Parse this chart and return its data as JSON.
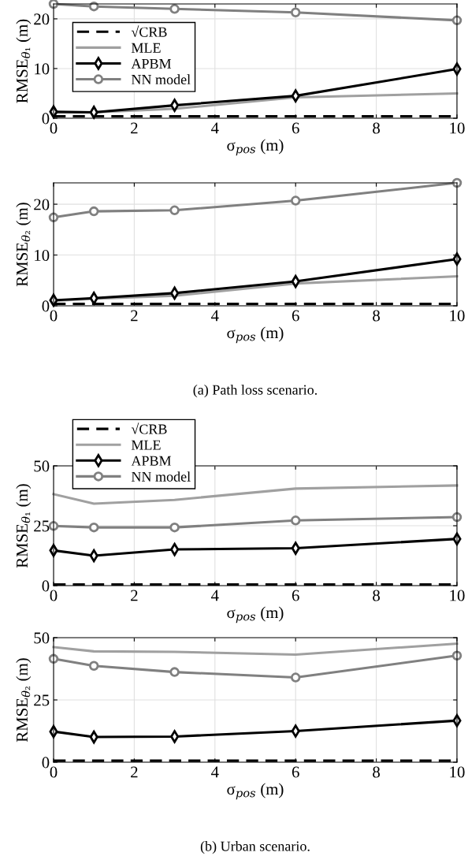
{
  "chart_data": [
    {
      "type": "line",
      "x": [
        0,
        1,
        3,
        6,
        10
      ],
      "ylabel": "RMSE$_{θ₁}$ (m)",
      "xlabel": "σ$_{pos}$ (m)",
      "xlim": [
        0,
        10
      ],
      "xticks": [
        0,
        2,
        4,
        6,
        8,
        10
      ],
      "ylim": [
        0,
        23
      ],
      "yticks": [
        0,
        10,
        20
      ],
      "grid": true,
      "legend": "top left",
      "series": [
        {
          "name": "√CRB",
          "color": "#000000",
          "line_style": "dashed",
          "marker": "none",
          "values": [
            0.4,
            0.4,
            0.4,
            0.4,
            0.4
          ]
        },
        {
          "name": "MLE",
          "color": "#a0a0a0",
          "line_style": "solid",
          "marker": "none",
          "values": [
            1.1,
            1.2,
            1.9,
            4.2,
            5.0
          ]
        },
        {
          "name": "APBM",
          "color": "#000000",
          "line_style": "solid",
          "marker": "diamond",
          "values": [
            1.3,
            1.2,
            2.6,
            4.5,
            9.9
          ]
        },
        {
          "name": "NN model",
          "color": "#808080",
          "line_style": "solid",
          "marker": "circle",
          "values": [
            23,
            22.5,
            22,
            21.3,
            19.7
          ]
        }
      ]
    },
    {
      "type": "line",
      "x": [
        0,
        1,
        3,
        6,
        10
      ],
      "ylabel": "RMSE$_{θ₂}$ (m)",
      "xlabel": "σ$_{pos}$ (m)",
      "xlim": [
        0,
        10
      ],
      "xticks": [
        0,
        2,
        4,
        6,
        8,
        10
      ],
      "ylim": [
        0,
        24.2
      ],
      "yticks": [
        0,
        10,
        20
      ],
      "grid": true,
      "annotations": [
        "(a) Path loss scenario."
      ],
      "series": [
        {
          "color": "#000000",
          "line_style": "dashed",
          "marker": "none",
          "values": [
            0.4,
            0.4,
            0.4,
            0.4,
            0.4
          ]
        },
        {
          "color": "#a0a0a0",
          "line_style": "solid",
          "marker": "none",
          "values": [
            1.0,
            1.4,
            2.0,
            4.4,
            5.8
          ]
        },
        {
          "color": "#000000",
          "line_style": "solid",
          "marker": "diamond",
          "values": [
            1.1,
            1.5,
            2.5,
            4.8,
            9.2
          ]
        },
        {
          "color": "#808080",
          "line_style": "solid",
          "marker": "circle",
          "values": [
            17.4,
            18.6,
            18.8,
            20.7,
            24.2
          ]
        }
      ]
    },
    {
      "type": "line",
      "x": [
        0,
        1,
        3,
        6,
        10
      ],
      "ylabel": "RMSE$_{θ₁}$ (m)",
      "xlabel": "σ$_{pos}$ (m)",
      "xlim": [
        0,
        10
      ],
      "xticks": [
        0,
        2,
        4,
        6,
        8,
        10
      ],
      "ylim": [
        0,
        50
      ],
      "yticks": [
        0,
        25,
        50
      ],
      "grid": true,
      "legend": "top",
      "series": [
        {
          "name": "√CRB",
          "color": "#000000",
          "line_style": "dashed",
          "marker": "none",
          "values": [
            0.5,
            0.5,
            0.5,
            0.5,
            0.5
          ]
        },
        {
          "name": "MLE",
          "color": "#a0a0a0",
          "line_style": "solid",
          "marker": "none",
          "values": [
            38.2,
            34.2,
            35.8,
            40.5,
            41.8
          ]
        },
        {
          "name": "APBM",
          "color": "#000000",
          "line_style": "solid",
          "marker": "diamond",
          "values": [
            14.7,
            12.5,
            15.1,
            15.6,
            19.5
          ]
        },
        {
          "name": "NN model",
          "color": "#808080",
          "line_style": "solid",
          "marker": "circle",
          "values": [
            24.9,
            24.3,
            24.3,
            27.2,
            28.6
          ]
        }
      ]
    },
    {
      "type": "line",
      "x": [
        0,
        1,
        3,
        6,
        10
      ],
      "ylabel": "RMSE$_{θ₂}$ (m)",
      "xlabel": "σ$_{pos}$ (m)",
      "xlim": [
        0,
        10
      ],
      "xticks": [
        0,
        2,
        4,
        6,
        8,
        10
      ],
      "ylim": [
        0,
        50
      ],
      "yticks": [
        0,
        25,
        50
      ],
      "grid": true,
      "annotations": [
        "(b) Urban scenario."
      ],
      "series": [
        {
          "color": "#000000",
          "line_style": "dashed",
          "marker": "none",
          "values": [
            0.6,
            0.6,
            0.6,
            0.6,
            0.6
          ]
        },
        {
          "color": "#a0a0a0",
          "line_style": "solid",
          "marker": "none",
          "values": [
            46.2,
            44.5,
            44.3,
            43.2,
            47.6
          ]
        },
        {
          "color": "#000000",
          "line_style": "solid",
          "marker": "diamond",
          "values": [
            12.3,
            10.1,
            10.3,
            12.5,
            16.7
          ]
        },
        {
          "color": "#808080",
          "line_style": "solid",
          "marker": "circle",
          "values": [
            41.5,
            38.7,
            36.2,
            34.0,
            42.8
          ]
        }
      ]
    }
  ]
}
